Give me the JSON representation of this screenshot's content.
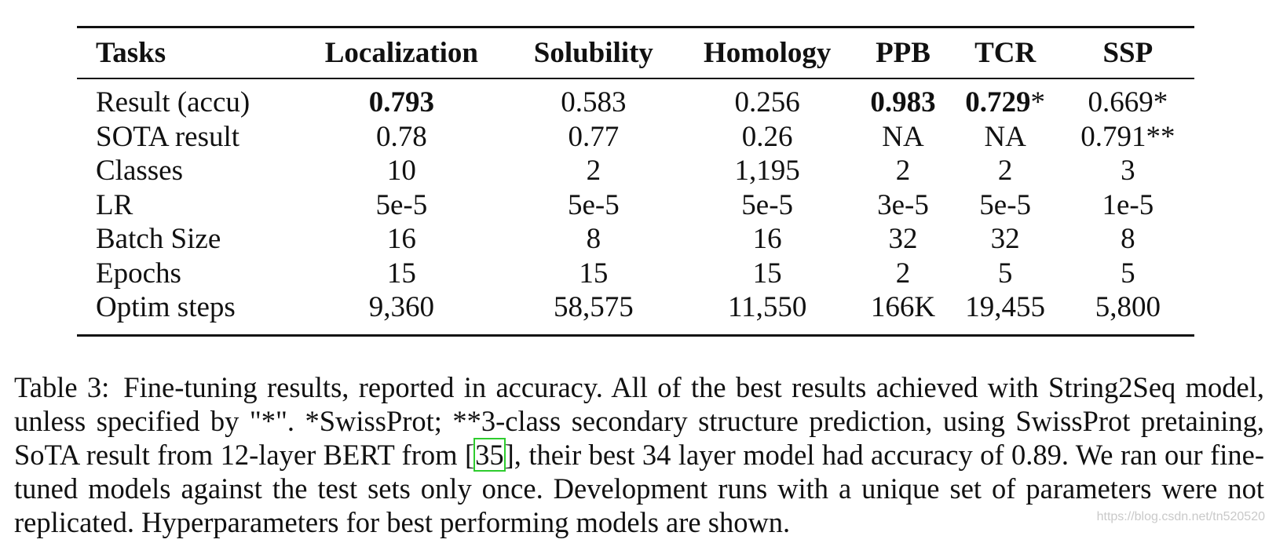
{
  "table": {
    "headers": [
      "Tasks",
      "Localization",
      "Solubility",
      "Homology",
      "PPB",
      "TCR",
      "SSP"
    ],
    "rows": [
      {
        "label": "Result (accu)",
        "cells": [
          {
            "value": "0.793",
            "bold": true,
            "mark": ""
          },
          {
            "value": "0.583",
            "bold": false,
            "mark": ""
          },
          {
            "value": "0.256",
            "bold": false,
            "mark": ""
          },
          {
            "value": "0.983",
            "bold": true,
            "mark": ""
          },
          {
            "value": "0.729",
            "bold": true,
            "mark": "*"
          },
          {
            "value": "0.669",
            "bold": false,
            "mark": "*"
          }
        ]
      },
      {
        "label": "SOTA result",
        "cells": [
          {
            "value": "0.78",
            "bold": false,
            "mark": ""
          },
          {
            "value": "0.77",
            "bold": false,
            "mark": ""
          },
          {
            "value": "0.26",
            "bold": false,
            "mark": ""
          },
          {
            "value": "NA",
            "bold": false,
            "mark": ""
          },
          {
            "value": "NA",
            "bold": false,
            "mark": ""
          },
          {
            "value": "0.791",
            "bold": false,
            "mark": "**"
          }
        ]
      },
      {
        "label": "Classes",
        "cells": [
          {
            "value": "10",
            "bold": false,
            "mark": ""
          },
          {
            "value": "2",
            "bold": false,
            "mark": ""
          },
          {
            "value": "1,195",
            "bold": false,
            "mark": ""
          },
          {
            "value": "2",
            "bold": false,
            "mark": ""
          },
          {
            "value": "2",
            "bold": false,
            "mark": ""
          },
          {
            "value": "3",
            "bold": false,
            "mark": ""
          }
        ]
      },
      {
        "label": "LR",
        "cells": [
          {
            "value": "5e-5",
            "bold": false,
            "mark": ""
          },
          {
            "value": "5e-5",
            "bold": false,
            "mark": ""
          },
          {
            "value": "5e-5",
            "bold": false,
            "mark": ""
          },
          {
            "value": "3e-5",
            "bold": false,
            "mark": ""
          },
          {
            "value": "5e-5",
            "bold": false,
            "mark": ""
          },
          {
            "value": "1e-5",
            "bold": false,
            "mark": ""
          }
        ]
      },
      {
        "label": "Batch Size",
        "cells": [
          {
            "value": "16",
            "bold": false,
            "mark": ""
          },
          {
            "value": "8",
            "bold": false,
            "mark": ""
          },
          {
            "value": "16",
            "bold": false,
            "mark": ""
          },
          {
            "value": "32",
            "bold": false,
            "mark": ""
          },
          {
            "value": "32",
            "bold": false,
            "mark": ""
          },
          {
            "value": "8",
            "bold": false,
            "mark": ""
          }
        ]
      },
      {
        "label": "Epochs",
        "cells": [
          {
            "value": "15",
            "bold": false,
            "mark": ""
          },
          {
            "value": "15",
            "bold": false,
            "mark": ""
          },
          {
            "value": "15",
            "bold": false,
            "mark": ""
          },
          {
            "value": "2",
            "bold": false,
            "mark": ""
          },
          {
            "value": "5",
            "bold": false,
            "mark": ""
          },
          {
            "value": "5",
            "bold": false,
            "mark": ""
          }
        ]
      },
      {
        "label": "Optim steps",
        "cells": [
          {
            "value": "9,360",
            "bold": false,
            "mark": ""
          },
          {
            "value": "58,575",
            "bold": false,
            "mark": ""
          },
          {
            "value": "11,550",
            "bold": false,
            "mark": ""
          },
          {
            "value": "166K",
            "bold": false,
            "mark": ""
          },
          {
            "value": "19,455",
            "bold": false,
            "mark": ""
          },
          {
            "value": "5,800",
            "bold": false,
            "mark": ""
          }
        ]
      }
    ]
  },
  "caption": {
    "label": "Table 3:",
    "text_before": "Fine-tuning results, reported in accuracy. All of the best results achieved with String2Seq model, unless specified by \"*\". *SwissProt; **3-class secondary structure prediction, using SwissProt pretaining, SoTA result from 12-layer BERT from [",
    "ref": "35",
    "text_after": "], their best 34 layer model had accuracy of 0.89. We ran our fine-tuned models against the test sets only once. Development runs with a unique set of parameters were not replicated. Hyperparameters for best performing models are shown."
  },
  "watermark": "https://blog.csdn.net/tn520520",
  "colors": {
    "text": "#111111",
    "ref_box": "#2ecc2e",
    "watermark": "#c9c9c9"
  }
}
